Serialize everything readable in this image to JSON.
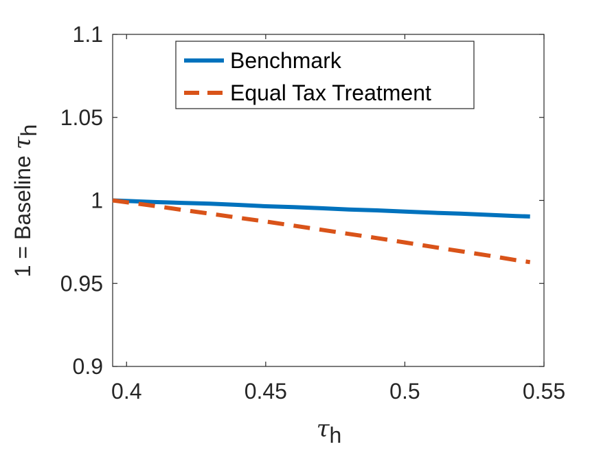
{
  "chart_data": {
    "type": "line",
    "title": "",
    "xlabel": {
      "symbol": "τ",
      "subscript": "h"
    },
    "ylabel": {
      "text": "1 = Baseline ",
      "symbol": "τ",
      "subscript": "h"
    },
    "xlim": [
      0.395,
      0.55
    ],
    "ylim": [
      0.9,
      1.1
    ],
    "xticks": [
      0.4,
      0.45,
      0.5,
      0.55
    ],
    "xtick_labels": [
      "0.4",
      "0.45",
      "0.5",
      "0.55"
    ],
    "yticks": [
      0.9,
      0.95,
      1.0,
      1.05,
      1.1
    ],
    "ytick_labels": [
      "0.9",
      "0.95",
      "1",
      "1.05",
      "1.1"
    ],
    "grid": false,
    "legend_position": "top-center",
    "series": [
      {
        "name": "Benchmark",
        "color": "#0072BD",
        "style": "solid",
        "x": [
          0.395,
          0.41,
          0.42,
          0.43,
          0.44,
          0.45,
          0.46,
          0.47,
          0.48,
          0.49,
          0.5,
          0.51,
          0.52,
          0.53,
          0.54,
          0.545
        ],
        "y": [
          1.0,
          0.999,
          0.9985,
          0.998,
          0.9973,
          0.9965,
          0.996,
          0.9953,
          0.9945,
          0.994,
          0.9933,
          0.9926,
          0.992,
          0.9913,
          0.9906,
          0.9903
        ]
      },
      {
        "name": "Equal Tax Treatment",
        "color": "#D95319",
        "style": "dashed",
        "x": [
          0.395,
          0.41,
          0.42,
          0.43,
          0.44,
          0.45,
          0.46,
          0.47,
          0.48,
          0.49,
          0.5,
          0.51,
          0.52,
          0.53,
          0.54,
          0.545
        ],
        "y": [
          1.0,
          0.9967,
          0.9943,
          0.992,
          0.9896,
          0.9873,
          0.9848,
          0.9823,
          0.9798,
          0.9773,
          0.9747,
          0.972,
          0.9694,
          0.9668,
          0.964,
          0.9628
        ]
      }
    ]
  }
}
